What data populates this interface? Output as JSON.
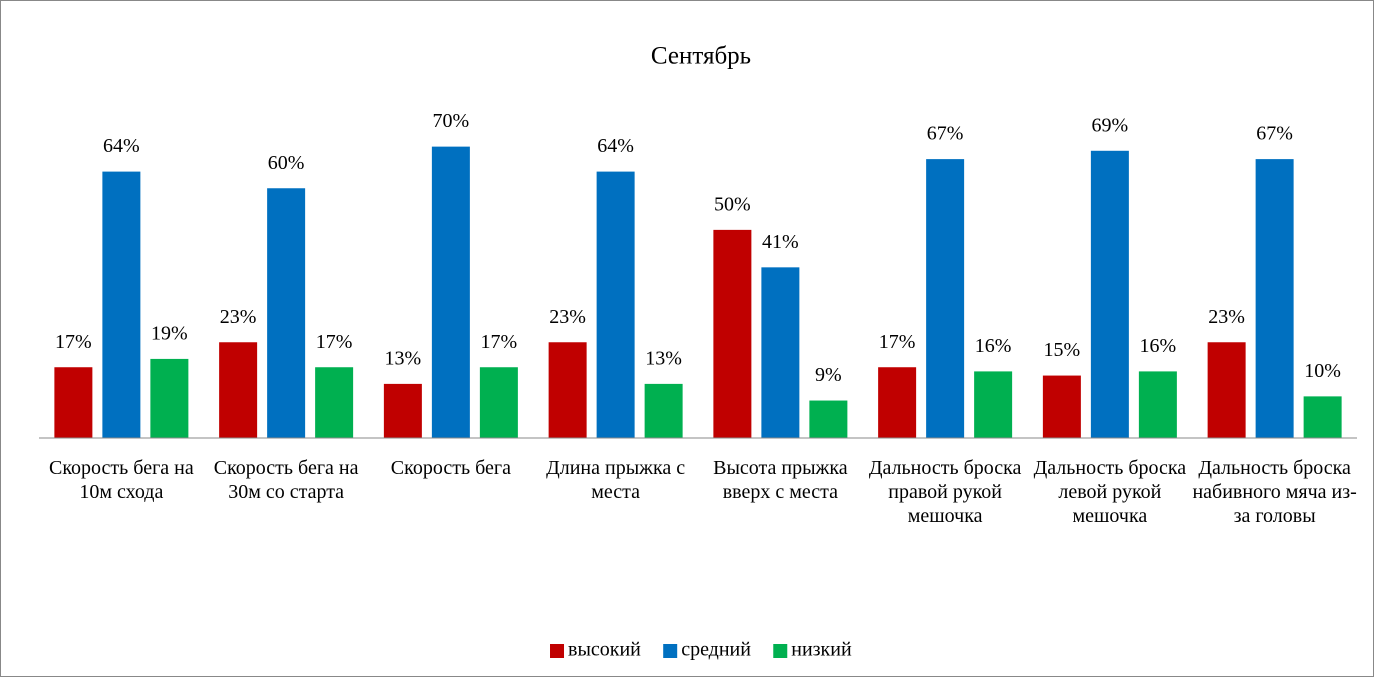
{
  "chart_data": {
    "type": "bar",
    "title": "Сентябрь",
    "categories": [
      "Скорость бега на 10м схода",
      "Скорость бега на 30м со старта",
      "Скорость бега",
      "Длина прыжка с места",
      "Высота прыжка вверх с места",
      "Дальность броска правой рукой мешочка",
      "Дальность броска левой рукой мешочка",
      "Дальность броска набивного мяча из-за головы"
    ],
    "series": [
      {
        "name": "высокий",
        "color": "#c00000",
        "values": [
          17,
          23,
          13,
          23,
          50,
          17,
          15,
          23
        ],
        "value_labels": [
          "17%",
          "23%",
          "13%",
          "23%",
          "50%",
          "17%",
          "15%",
          "23%"
        ]
      },
      {
        "name": "средний",
        "color": "#0070c0",
        "values": [
          64,
          60,
          70,
          64,
          41,
          67,
          69,
          67
        ],
        "value_labels": [
          "64%",
          "60%",
          "70%",
          "64%",
          "41%",
          "67%",
          "69%",
          "67%"
        ]
      },
      {
        "name": "низкий",
        "color": "#00b050",
        "values": [
          19,
          17,
          17,
          13,
          9,
          16,
          16,
          10
        ],
        "value_labels": [
          "19%",
          "17%",
          "17%",
          "13%",
          "9%",
          "16%",
          "16%",
          "10%"
        ]
      }
    ],
    "ylim": [
      0,
      80
    ],
    "legend": "bottom"
  }
}
